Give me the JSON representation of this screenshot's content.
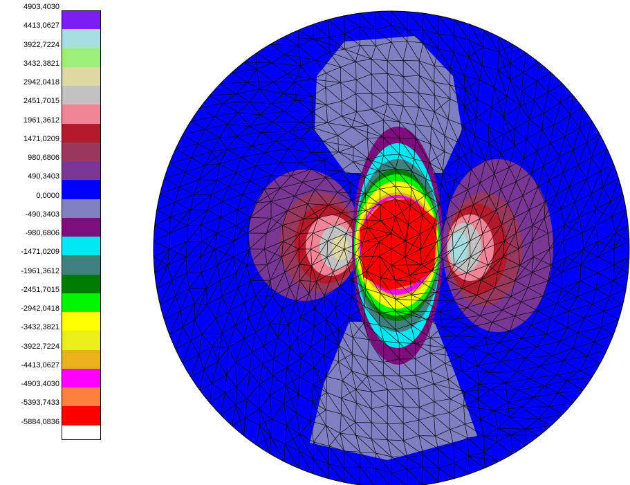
{
  "legend": {
    "labels": [
      "4903,4030",
      "4413,0627",
      "3922,7224",
      "3432,3821",
      "2942,0418",
      "2451,7015",
      "1961,3612",
      "1471,0209",
      "980,6806",
      "490,3403",
      "0,0000",
      "-490,3403",
      "-980,6806",
      "-1471,0209",
      "-1961,3612",
      "-2451,7015",
      "-2942,0418",
      "-3432,3821",
      "-3922,7224",
      "-4413,0627",
      "-4903,4030",
      "-5393,7433",
      "-5884,0836"
    ],
    "colors": [
      "#7b1cf2",
      "#a6dde3",
      "#9ded79",
      "#dcd9a3",
      "#c2c2c2",
      "#ef8596",
      "#b31b2d",
      "#98385d",
      "#7a3694",
      "#0000ff",
      "#7f80c2",
      "#7e0d7d",
      "#00e8f2",
      "#3f7f7f",
      "#007c00",
      "#00f500",
      "#ffff00",
      "#e8ef19",
      "#eab219",
      "#ff00ff",
      "#ff7f3f",
      "#ff0000"
    ]
  },
  "figure": {
    "type": "finite-element stress contour",
    "shape": "circular disk",
    "mesh": "triangular",
    "colors": {
      "background_zone": "#0000ff",
      "vertical_lobes": "#7f80c2",
      "compression_rings": [
        "#7e0d7d",
        "#00e8f2",
        "#3f7f7f",
        "#007c00",
        "#00f500",
        "#ffff00",
        "#e8ef19",
        "#eab219",
        "#ff00ff",
        "#ff7f3f",
        "#ff0000"
      ],
      "tension_side_rings": [
        "#7a3694",
        "#98385d",
        "#b31b2d",
        "#ef8596",
        "#c2c2c2",
        "#dcd9a3",
        "#a6dde3"
      ]
    }
  }
}
